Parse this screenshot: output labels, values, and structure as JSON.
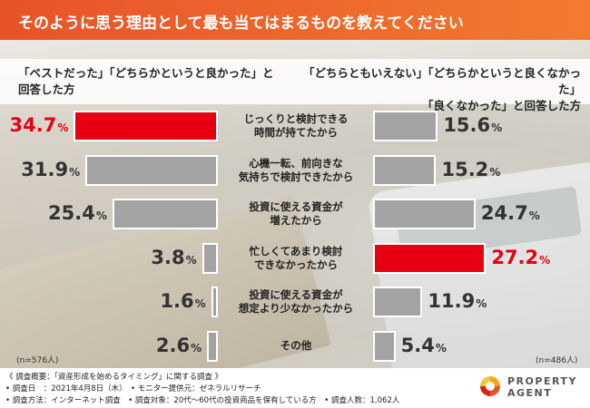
{
  "header": {
    "title": "そのように思う理由として最も当てはまるものを教えてください"
  },
  "chart_data": {
    "type": "bar",
    "categories": [
      "じっくりと検討できる\n時間が持てたから",
      "心機一転、前向きな\n気持ちで検討できたから",
      "投資に使える資金が\n増えたから",
      "忙しくてあまり検討\nできなかったから",
      "投資に使える資金が\n想定より少なかったから",
      "その他"
    ],
    "series": [
      {
        "name": "「ベストだった」「どちらかというと良かった」と回答した方",
        "values": [
          34.7,
          31.9,
          25.4,
          3.8,
          1.6,
          2.6
        ],
        "n": "(n=576人)"
      },
      {
        "name": "「どちらともいえない」「どちらかというと良くなかった」「良くなかった」と回答した方",
        "values": [
          15.6,
          15.2,
          24.7,
          27.2,
          11.9,
          5.4
        ],
        "n": "(n=486人)"
      }
    ],
    "unit": "%",
    "highlight": {
      "left_index": 0,
      "right_index": 3,
      "color": "#e60012"
    },
    "bar_color": "#a3a3a3"
  },
  "labels": {
    "left_head_1": "「ベストだった」「どちらかというと良かった」と",
    "left_head_2": "回答した方",
    "right_head_1": "「どちらともいえない」「どちらかというと良くなかった」",
    "right_head_2": "「良くなかった」と回答した方"
  },
  "footer": {
    "line1": "《 調査概要：「資産形成を始めるタイミング」に関する調査 》",
    "line2": "• 調査日　：2021年4月8日（木）　• モニター提供元：ゼネラルリサーチ",
    "line3": "• 調査方法：インターネット調査　• 調査対象：20代〜60代の投資商品を保有している方　• 調査人数：1,062人",
    "logo_line1": "PROPERTY",
    "logo_line2": "AGENT"
  }
}
